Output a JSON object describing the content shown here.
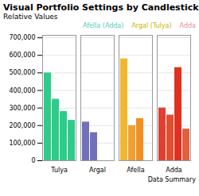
{
  "chart_data": {
    "type": "bar",
    "title": "Visual Portfolio Settings by Candlestick",
    "subtitle": "Relative Values",
    "annotations": [
      {
        "text": "Afella (Adda)",
        "color": "#4ecdc4"
      },
      {
        "text": "Argal (Tulya)",
        "color": "#c8b400"
      },
      {
        "text": "Adda",
        "color": "#e09090"
      }
    ],
    "caption": "Data Summary",
    "categories": [
      "Tulya",
      "Argal",
      "Afella",
      "Adda"
    ],
    "series": [
      {
        "values": [
          500000,
          220000,
          580000,
          300000
        ],
        "colors": [
          "#2ecc8a",
          "#7070bb",
          "#f0b830",
          "#e04030"
        ]
      },
      {
        "values": [
          350000,
          160000,
          200000,
          260000
        ],
        "colors": [
          "#2ecc8a",
          "#7070bb",
          "#f0a030",
          "#e05030"
        ]
      },
      {
        "values": [
          280000,
          null,
          240000,
          530000
        ],
        "colors": [
          "#2ecc8a",
          null,
          "#f09020",
          "#e03020"
        ]
      },
      {
        "values": [
          230000,
          null,
          null,
          180000
        ],
        "colors": [
          "#2ecc8a",
          null,
          null,
          "#e06040"
        ]
      }
    ],
    "ylim": [
      0,
      714000
    ],
    "yticks": [
      0,
      {
        "value": 100000,
        "label": "100,000"
      },
      {
        "value": 200000,
        "label": "200,000"
      },
      {
        "value": 300000,
        "label": "300,000"
      },
      {
        "value": 400000,
        "label": "400,000"
      },
      {
        "value": 500000,
        "label": "500,000"
      },
      {
        "value": 600000,
        "label": "600,000"
      },
      {
        "value": 700000,
        "label": "700,000"
      }
    ],
    "grid": true
  }
}
